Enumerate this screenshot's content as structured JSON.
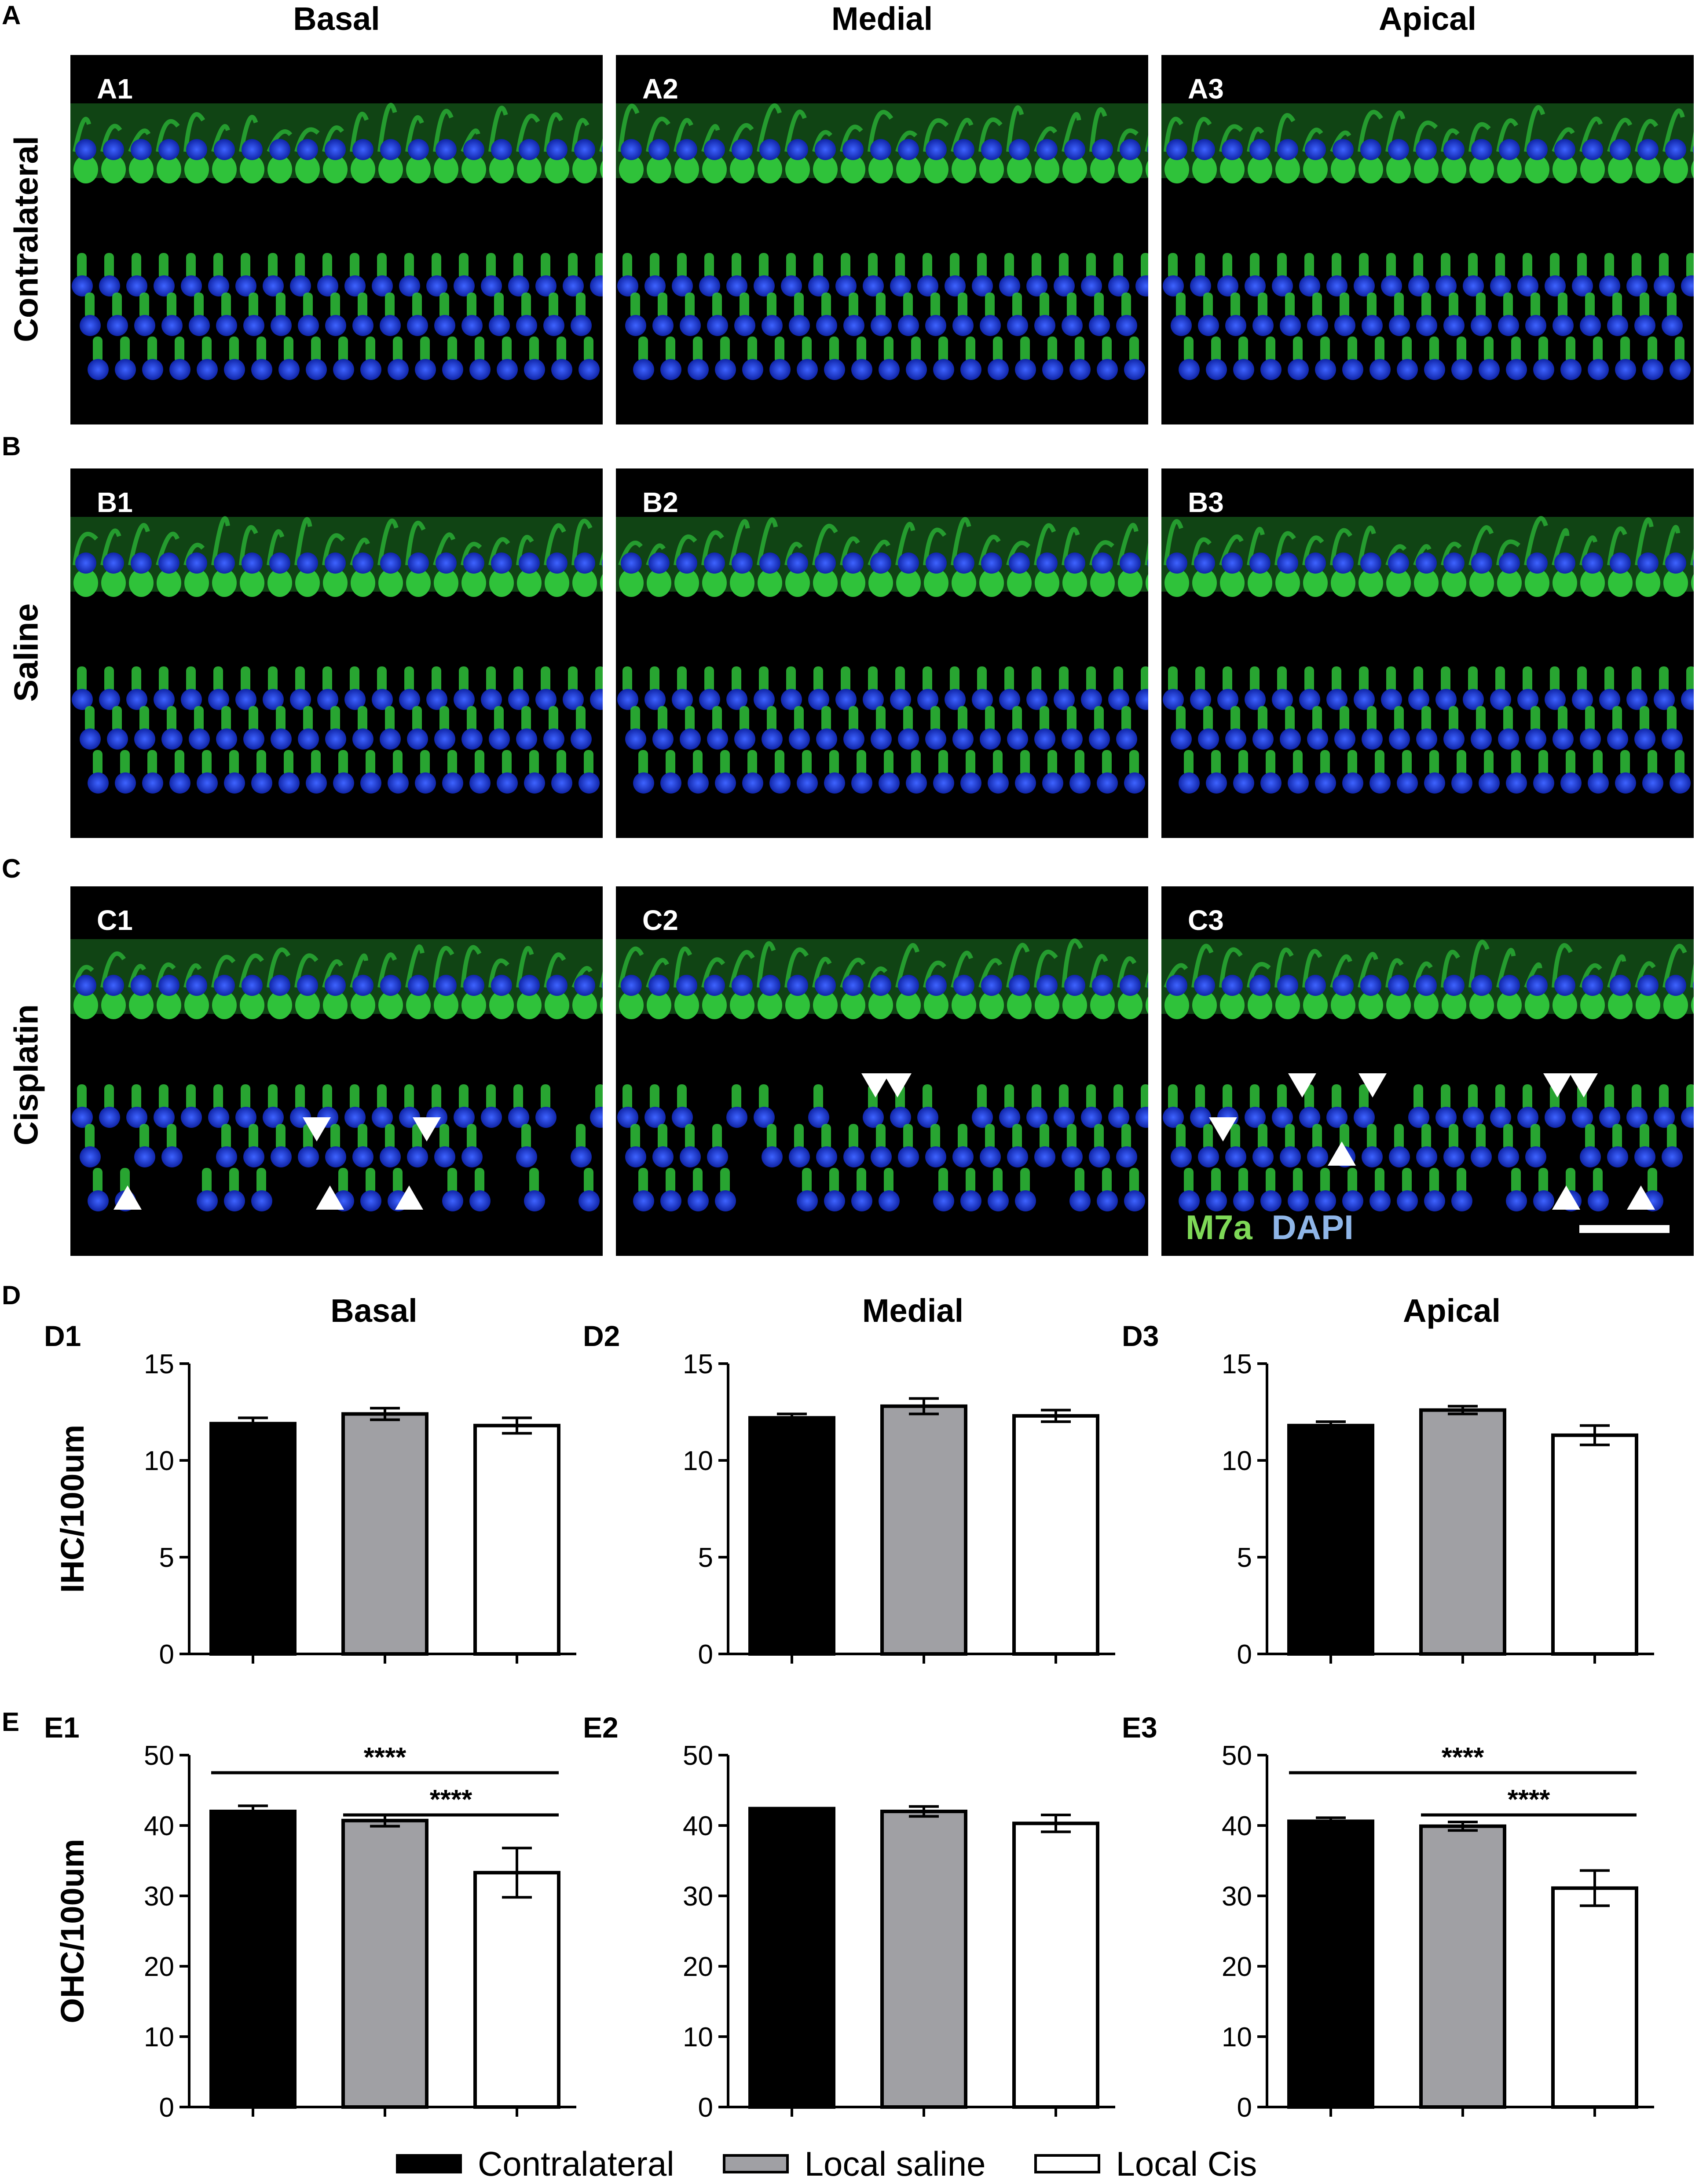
{
  "panel_letters": {
    "A": "A",
    "B": "B",
    "C": "C",
    "D": "D",
    "E": "E"
  },
  "column_headers": [
    "Basal",
    "Medial",
    "Apical"
  ],
  "row_headers": [
    "Contralateral",
    "Saline",
    "Cisplatin"
  ],
  "micrographs": {
    "A": [
      "A1",
      "A2",
      "A3"
    ],
    "B": [
      "B1",
      "B2",
      "B3"
    ],
    "C": [
      "C1",
      "C2",
      "C3"
    ]
  },
  "stain_legend": {
    "m7a": "M7a",
    "dapi": "DAPI",
    "m7a_color": "#7ED957",
    "dapi_color": "#8FB6E8"
  },
  "colors": {
    "contralateral": "#000000",
    "local_saline": "#A0A0A4",
    "local_cis": "#FFFFFF",
    "ihc_green": "#2FC23A",
    "nucleus_blue": "#1A3FD6"
  },
  "legend": [
    "Contralateral",
    "Local saline",
    "Local Cis"
  ],
  "chart_data": [
    {
      "id": "D1",
      "title": "Basal",
      "type": "bar",
      "categories": [
        "Contralateral",
        "Local saline",
        "Local Cis"
      ],
      "values": [
        11.9,
        12.4,
        11.8
      ],
      "errors": [
        0.3,
        0.3,
        0.4
      ],
      "ylabel": "IHC/100um",
      "ylim": [
        0,
        15
      ],
      "yticks": [
        "0",
        "5",
        "10",
        "15"
      ],
      "significance": []
    },
    {
      "id": "D2",
      "title": "Medial",
      "type": "bar",
      "categories": [
        "Contralateral",
        "Local saline",
        "Local Cis"
      ],
      "values": [
        12.2,
        12.8,
        12.3
      ],
      "errors": [
        0.2,
        0.4,
        0.3
      ],
      "ylabel": "",
      "ylim": [
        0,
        15
      ],
      "yticks": [
        "0",
        "5",
        "10",
        "15"
      ],
      "significance": []
    },
    {
      "id": "D3",
      "title": "Apical",
      "type": "bar",
      "categories": [
        "Contralateral",
        "Local saline",
        "Local Cis"
      ],
      "values": [
        11.8,
        12.6,
        11.3
      ],
      "errors": [
        0.2,
        0.2,
        0.5
      ],
      "ylabel": "",
      "ylim": [
        0,
        15
      ],
      "yticks": [
        "0",
        "5",
        "10",
        "15"
      ],
      "significance": []
    },
    {
      "id": "E1",
      "title": "",
      "type": "bar",
      "categories": [
        "Contralateral",
        "Local saline",
        "Local Cis"
      ],
      "values": [
        42,
        40.7,
        33.3
      ],
      "errors": [
        0.8,
        0.8,
        3.5
      ],
      "ylabel": "OHC/100um",
      "ylim": [
        0,
        50
      ],
      "yticks": [
        "0",
        "10",
        "20",
        "30",
        "40",
        "50"
      ],
      "significance": [
        {
          "from": 0,
          "to": 2,
          "y": 47.5,
          "label": "****"
        },
        {
          "from": 1,
          "to": 2,
          "y": 41.5,
          "label": "****"
        }
      ]
    },
    {
      "id": "E2",
      "title": "",
      "type": "bar",
      "categories": [
        "Contralateral",
        "Local saline",
        "Local Cis"
      ],
      "values": [
        42.4,
        42,
        40.3
      ],
      "errors": [
        0.0,
        0.7,
        1.2
      ],
      "ylabel": "",
      "ylim": [
        0,
        50
      ],
      "yticks": [
        "0",
        "10",
        "20",
        "30",
        "40",
        "50"
      ],
      "significance": []
    },
    {
      "id": "E3",
      "title": "",
      "type": "bar",
      "categories": [
        "Contralateral",
        "Local saline",
        "Local Cis"
      ],
      "values": [
        40.6,
        39.9,
        31.1
      ],
      "errors": [
        0.5,
        0.6,
        2.5
      ],
      "ylabel": "",
      "ylim": [
        0,
        50
      ],
      "yticks": [
        "0",
        "10",
        "20",
        "30",
        "40",
        "50"
      ],
      "significance": [
        {
          "from": 0,
          "to": 2,
          "y": 47.5,
          "label": "****"
        },
        {
          "from": 1,
          "to": 2,
          "y": 41.5,
          "label": "****"
        }
      ]
    }
  ]
}
